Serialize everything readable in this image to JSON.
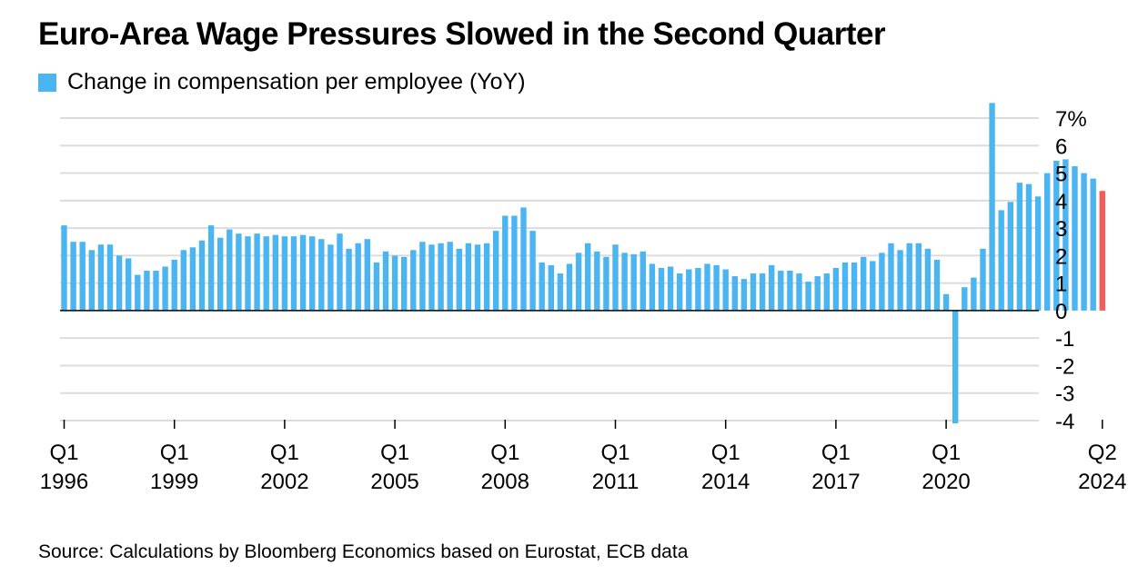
{
  "header": {
    "title": "Euro-Area Wage Pressures Slowed in the Second Quarter"
  },
  "legend": {
    "label": "Change in compensation per employee (YoY)",
    "color": "#4bb5f2"
  },
  "footer": {
    "source": "Source: Calculations by Bloomberg Economics based on Eurostat, ECB data"
  },
  "colors": {
    "bar": "#4bb5f2",
    "highlight": "#f45b5b",
    "grid": "#dcdcdc",
    "zero_line": "#000000"
  },
  "chart_data": {
    "type": "bar",
    "frequency": "quarterly",
    "start": "1996 Q1",
    "end": "2024 Q2",
    "highlight_last": true,
    "ylim": [
      -4,
      7
    ],
    "yticks": [
      7,
      6,
      5,
      4,
      3,
      2,
      1,
      0,
      -1,
      -2,
      -3,
      -4
    ],
    "ytick_labels": [
      "7%",
      "6",
      "5",
      "4",
      "3",
      "2",
      "1",
      "0",
      "-1",
      "-2",
      "-3",
      "-4"
    ],
    "y_axis_position": "right",
    "grid": true,
    "xtick_labels": [
      {
        "index": 0,
        "line1": "Q1",
        "line2": "1996"
      },
      {
        "index": 12,
        "line1": "Q1",
        "line2": "1999"
      },
      {
        "index": 24,
        "line1": "Q1",
        "line2": "2002"
      },
      {
        "index": 36,
        "line1": "Q1",
        "line2": "2005"
      },
      {
        "index": 48,
        "line1": "Q1",
        "line2": "2008"
      },
      {
        "index": 60,
        "line1": "Q1",
        "line2": "2011"
      },
      {
        "index": 72,
        "line1": "Q1",
        "line2": "2014"
      },
      {
        "index": 84,
        "line1": "Q1",
        "line2": "2017"
      },
      {
        "index": 96,
        "line1": "Q1",
        "line2": "2020"
      },
      {
        "index": 113,
        "line1": "Q2",
        "line2": "2024"
      }
    ],
    "values": [
      3.1,
      2.5,
      2.5,
      2.2,
      2.4,
      2.4,
      2.0,
      1.9,
      1.3,
      1.45,
      1.45,
      1.6,
      1.85,
      2.2,
      2.3,
      2.55,
      3.1,
      2.65,
      2.95,
      2.8,
      2.7,
      2.8,
      2.7,
      2.75,
      2.7,
      2.7,
      2.75,
      2.7,
      2.6,
      2.4,
      2.8,
      2.25,
      2.45,
      2.6,
      1.75,
      2.15,
      2.0,
      1.95,
      2.2,
      2.5,
      2.4,
      2.45,
      2.5,
      2.25,
      2.45,
      2.4,
      2.45,
      2.9,
      3.45,
      3.45,
      3.75,
      2.9,
      1.75,
      1.65,
      1.35,
      1.7,
      2.1,
      2.45,
      2.15,
      1.95,
      2.4,
      2.1,
      2.05,
      2.15,
      1.7,
      1.55,
      1.6,
      1.35,
      1.5,
      1.55,
      1.7,
      1.65,
      1.5,
      1.25,
      1.15,
      1.35,
      1.35,
      1.65,
      1.45,
      1.45,
      1.35,
      1.05,
      1.25,
      1.35,
      1.55,
      1.75,
      1.75,
      1.95,
      1.8,
      2.1,
      2.45,
      2.2,
      2.45,
      2.45,
      2.25,
      1.85,
      0.6,
      -4.1,
      0.85,
      1.2,
      2.25,
      7.55,
      3.65,
      3.95,
      4.65,
      4.6,
      4.15,
      5.0,
      5.45,
      5.5,
      5.25,
      5.0,
      4.8,
      4.35
    ]
  }
}
